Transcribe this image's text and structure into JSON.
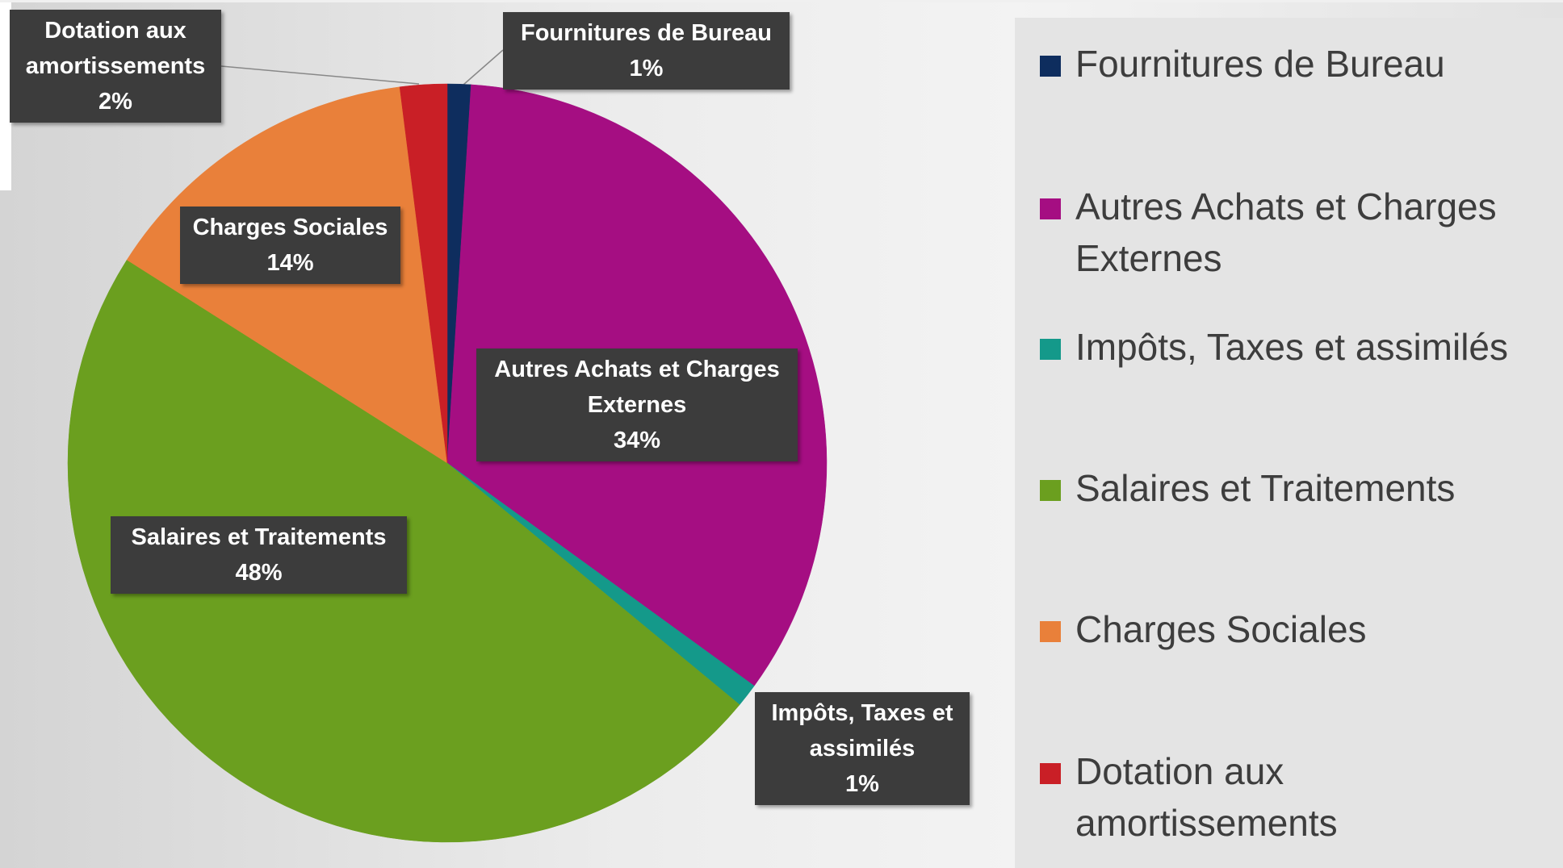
{
  "chart_data": {
    "type": "pie",
    "categories": [
      "Fournitures de Bureau",
      "Autres Achats et Charges Externes",
      "Impôts, Taxes et assimilés",
      "Salaires et Traitements",
      "Charges Sociales",
      "Dotation aux amortissements"
    ],
    "values": [
      1,
      34,
      1,
      48,
      14,
      2
    ],
    "value_labels": [
      "1%",
      "34%",
      "1%",
      "48%",
      "14%",
      "2%"
    ],
    "colors": [
      "#0e2d5e",
      "#a50e82",
      "#14998a",
      "#6b9f1f",
      "#e9803a",
      "#c91f26"
    ],
    "legend": "right"
  }
}
